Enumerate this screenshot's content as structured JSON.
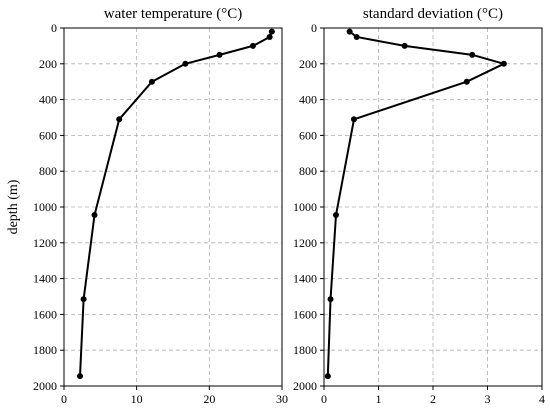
{
  "chart_data": [
    {
      "type": "line",
      "title": "water temperature (°C)",
      "xlabel": "",
      "ylabel": "depth (m)",
      "xlim": [
        0,
        30
      ],
      "ylim": [
        2000,
        0
      ],
      "x_ticks": [
        0,
        10,
        20,
        30
      ],
      "y_ticks": [
        0,
        200,
        400,
        600,
        800,
        1000,
        1200,
        1400,
        1600,
        1800,
        2000
      ],
      "grid": true,
      "series": [
        {
          "values": [
            {
              "x": 28.6,
              "y": 20
            },
            {
              "x": 28.3,
              "y": 50
            },
            {
              "x": 26.0,
              "y": 100
            },
            {
              "x": 21.4,
              "y": 150
            },
            {
              "x": 16.7,
              "y": 200
            },
            {
              "x": 12.1,
              "y": 300
            },
            {
              "x": 7.6,
              "y": 510
            },
            {
              "x": 4.2,
              "y": 1045
            },
            {
              "x": 2.7,
              "y": 1515
            },
            {
              "x": 2.2,
              "y": 1945
            }
          ]
        }
      ]
    },
    {
      "type": "line",
      "title": "standard deviation (°C)",
      "xlabel": "",
      "ylabel": "",
      "xlim": [
        0,
        4
      ],
      "ylim": [
        2000,
        0
      ],
      "x_ticks": [
        0,
        1,
        2,
        3,
        4
      ],
      "y_ticks": [
        0,
        200,
        400,
        600,
        800,
        1000,
        1200,
        1400,
        1600,
        1800,
        2000
      ],
      "grid": true,
      "series": [
        {
          "values": [
            {
              "x": 0.47,
              "y": 20
            },
            {
              "x": 0.6,
              "y": 50
            },
            {
              "x": 1.48,
              "y": 100
            },
            {
              "x": 2.72,
              "y": 150
            },
            {
              "x": 3.3,
              "y": 200
            },
            {
              "x": 2.62,
              "y": 300
            },
            {
              "x": 0.55,
              "y": 510
            },
            {
              "x": 0.22,
              "y": 1045
            },
            {
              "x": 0.12,
              "y": 1515
            },
            {
              "x": 0.07,
              "y": 1945
            }
          ]
        }
      ]
    }
  ]
}
